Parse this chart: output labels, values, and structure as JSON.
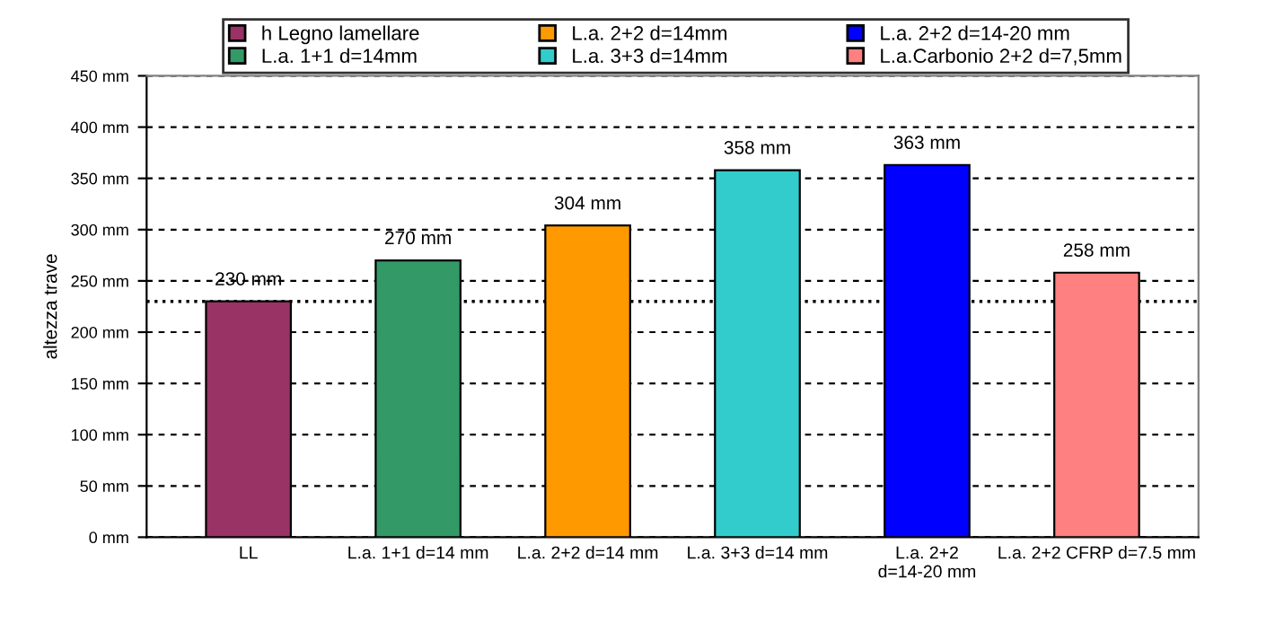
{
  "chart_data": {
    "type": "bar",
    "categories": [
      "LL",
      "L.a. 1+1 d=14 mm",
      "L.a. 2+2 d=14 mm",
      "L.a. 3+3 d=14 mm",
      "L.a. 2+2\nd=14-20 mm",
      "L.a. 2+2 CFRP d=7.5 mm"
    ],
    "series": [
      {
        "name": "h Legno lamellare",
        "color": "#993366",
        "values": [
          230,
          null,
          null,
          null,
          null,
          null
        ],
        "value_labels": [
          "230 mm",
          null,
          null,
          null,
          null,
          null
        ]
      },
      {
        "name": "L.a. 1+1 d=14mm",
        "color": "#339966",
        "values": [
          null,
          270,
          null,
          null,
          null,
          null
        ],
        "value_labels": [
          null,
          "270 mm",
          null,
          null,
          null,
          null
        ]
      },
      {
        "name": "L.a. 2+2 d=14mm",
        "color": "#ff9900",
        "values": [
          null,
          null,
          304,
          null,
          null,
          null
        ],
        "value_labels": [
          null,
          null,
          "304 mm",
          null,
          null,
          null
        ]
      },
      {
        "name": "L.a. 3+3 d=14mm",
        "color": "#33cccc",
        "values": [
          null,
          null,
          null,
          358,
          null,
          null
        ],
        "value_labels": [
          null,
          null,
          null,
          "358 mm",
          null,
          null
        ]
      },
      {
        "name": "L.a. 2+2 d=14-20 mm",
        "color": "#0000ff",
        "values": [
          null,
          null,
          null,
          null,
          363,
          null
        ],
        "value_labels": [
          null,
          null,
          null,
          null,
          "363 mm",
          null
        ]
      },
      {
        "name": "L.a.Carbonio 2+2 d=7,5mm",
        "color": "#ff8080",
        "values": [
          null,
          null,
          null,
          null,
          null,
          258
        ],
        "value_labels": [
          null,
          null,
          null,
          null,
          null,
          "258 mm"
        ]
      }
    ],
    "ylabel": "altezza trave",
    "ylim": [
      0,
      450
    ],
    "yticks": [
      {
        "value": 0,
        "label": "0 mm"
      },
      {
        "value": 50,
        "label": "50 mm"
      },
      {
        "value": 100,
        "label": "100 mm"
      },
      {
        "value": 150,
        "label": "150 mm"
      },
      {
        "value": 200,
        "label": "200 mm"
      },
      {
        "value": 250,
        "label": "250 mm"
      },
      {
        "value": 300,
        "label": "300 mm"
      },
      {
        "value": 350,
        "label": "350 mm"
      },
      {
        "value": 400,
        "label": "400 mm"
      },
      {
        "value": 450,
        "label": "450 mm"
      }
    ],
    "ref_lines": [
      {
        "axis": "y",
        "value": 230,
        "label": null,
        "color": "#000000",
        "line_style": "dotted"
      }
    ],
    "grid": "y",
    "legend": "top"
  }
}
